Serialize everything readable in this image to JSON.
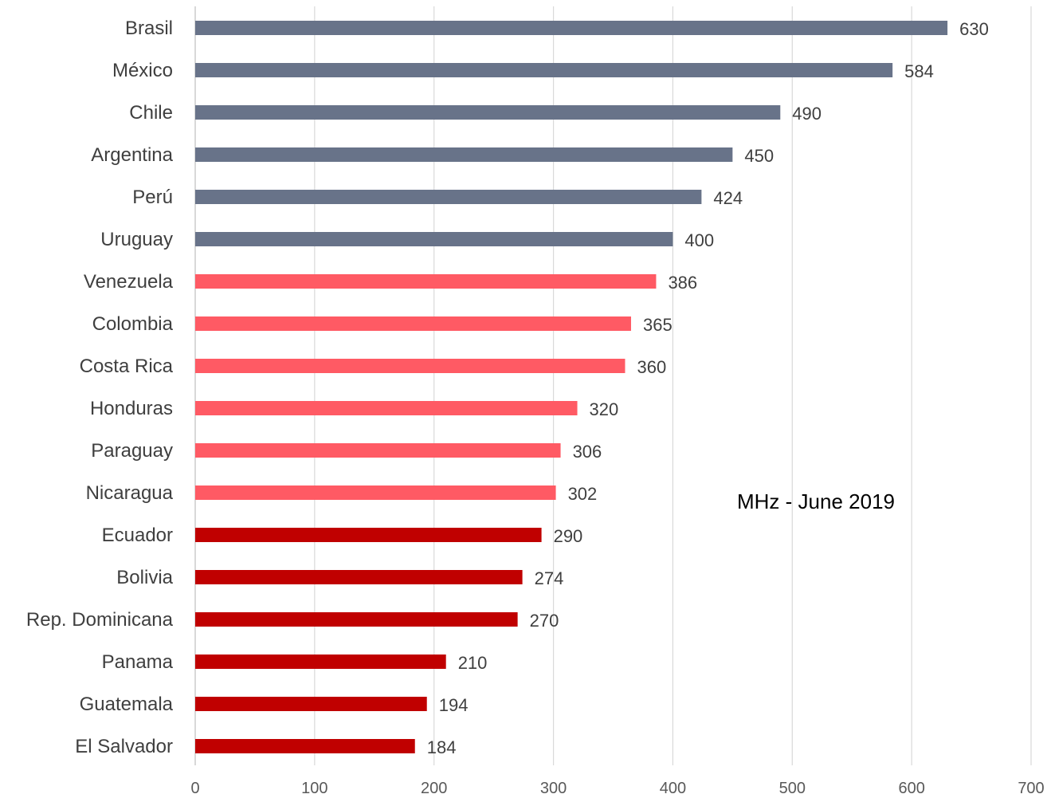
{
  "chart_data": {
    "type": "bar",
    "orientation": "horizontal",
    "categories": [
      "Brasil",
      "México",
      "Chile",
      "Argentina",
      "Perú",
      "Uruguay",
      "Venezuela",
      "Colombia",
      "Costa Rica",
      "Honduras",
      "Paraguay",
      "Nicaragua",
      "Ecuador",
      "Bolivia",
      "Rep. Dominicana",
      "Panama",
      "Guatemala",
      "El Salvador"
    ],
    "values": [
      630,
      584,
      490,
      450,
      424,
      400,
      386,
      365,
      360,
      320,
      306,
      302,
      290,
      274,
      270,
      210,
      194,
      184
    ],
    "bar_colors": [
      "#687389",
      "#687389",
      "#687389",
      "#687389",
      "#687389",
      "#687389",
      "#ff5a64",
      "#ff5a64",
      "#ff5a64",
      "#ff5a64",
      "#ff5a64",
      "#ff5a64",
      "#c00000",
      "#c00000",
      "#c00000",
      "#c00000",
      "#c00000",
      "#c00000"
    ],
    "xlim": [
      0,
      700
    ],
    "x_ticks": [
      0,
      100,
      200,
      300,
      400,
      500,
      600,
      700
    ],
    "grid": "vertical",
    "title": "",
    "xlabel": "",
    "ylabel": "",
    "annotation": "MHz - June 2019"
  }
}
